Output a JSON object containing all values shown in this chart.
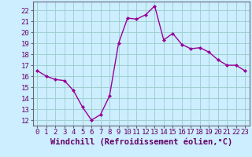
{
  "x": [
    0,
    1,
    2,
    3,
    4,
    5,
    6,
    7,
    8,
    9,
    10,
    11,
    12,
    13,
    14,
    15,
    16,
    17,
    18,
    19,
    20,
    21,
    22,
    23
  ],
  "y": [
    16.5,
    16.0,
    15.7,
    15.6,
    14.7,
    13.2,
    12.0,
    12.5,
    14.2,
    19.0,
    21.3,
    21.2,
    21.6,
    22.4,
    19.3,
    19.9,
    18.9,
    18.5,
    18.6,
    18.2,
    17.5,
    17.0,
    17.0,
    16.5
  ],
  "line_color": "#990099",
  "marker": "D",
  "marker_size": 2,
  "bg_color": "#cceeff",
  "grid_color": "#99cccc",
  "xlabel": "Windchill (Refroidissement éolien,°C)",
  "ylim": [
    11.5,
    22.8
  ],
  "xlim": [
    -0.5,
    23.5
  ],
  "yticks": [
    12,
    13,
    14,
    15,
    16,
    17,
    18,
    19,
    20,
    21,
    22
  ],
  "xticks": [
    0,
    1,
    2,
    3,
    4,
    5,
    6,
    7,
    8,
    9,
    10,
    11,
    12,
    13,
    14,
    15,
    16,
    17,
    18,
    19,
    20,
    21,
    22,
    23
  ],
  "xlabel_fontsize": 7.5,
  "tick_fontsize": 6.5,
  "spine_color": "#666677",
  "line_width": 1.0
}
